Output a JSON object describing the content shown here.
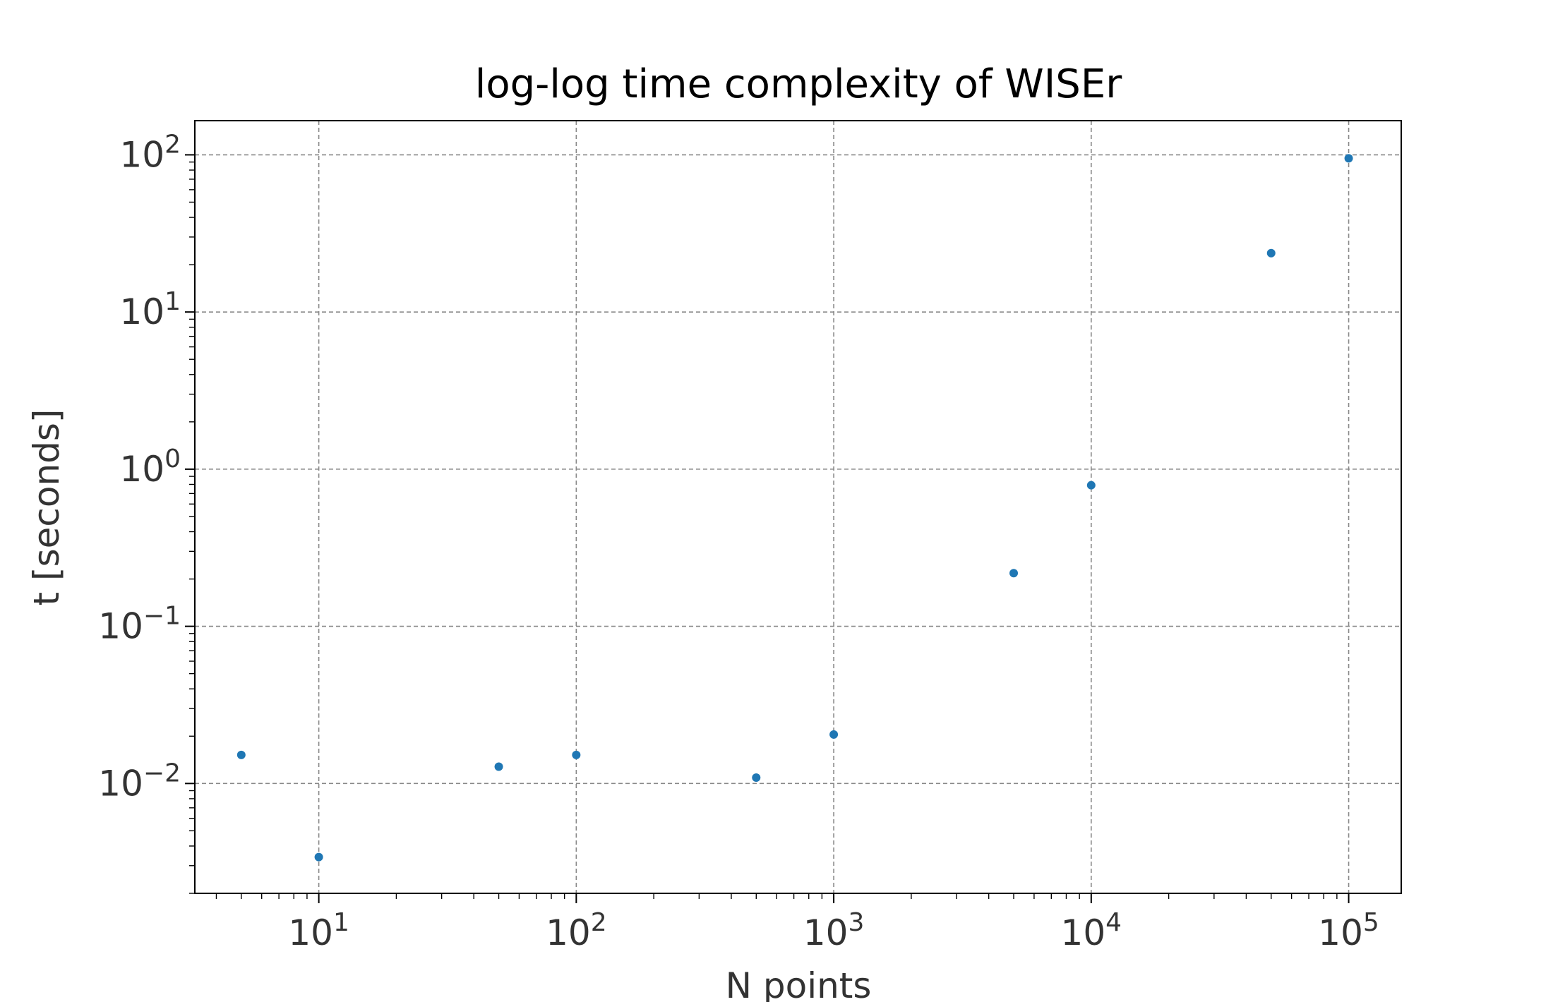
{
  "chart_data": {
    "type": "scatter",
    "title": "log-log time complexity of WISEr",
    "xlabel": "N points",
    "ylabel": "t [seconds]",
    "xscale": "log",
    "yscale": "log",
    "xlim": [
      3.3,
      160000
    ],
    "ylim": [
      0.002,
      165
    ],
    "grid": true,
    "x_ticks": [
      {
        "value": 10,
        "base": "10",
        "exp": "1"
      },
      {
        "value": 100,
        "base": "10",
        "exp": "2"
      },
      {
        "value": 1000,
        "base": "10",
        "exp": "3"
      },
      {
        "value": 10000,
        "base": "10",
        "exp": "4"
      },
      {
        "value": 100000,
        "base": "10",
        "exp": "5"
      }
    ],
    "y_ticks": [
      {
        "value": 0.01,
        "base": "10",
        "exp": "−2"
      },
      {
        "value": 0.1,
        "base": "10",
        "exp": "−1"
      },
      {
        "value": 1,
        "base": "10",
        "exp": "0"
      },
      {
        "value": 10,
        "base": "10",
        "exp": "1"
      },
      {
        "value": 100,
        "base": "10",
        "exp": "2"
      }
    ],
    "series": [
      {
        "color": "#1f77b4",
        "points": [
          {
            "x": 5,
            "y": 0.0152
          },
          {
            "x": 10,
            "y": 0.0034
          },
          {
            "x": 50,
            "y": 0.0128
          },
          {
            "x": 100,
            "y": 0.0152
          },
          {
            "x": 500,
            "y": 0.0109
          },
          {
            "x": 1000,
            "y": 0.0205
          },
          {
            "x": 5000,
            "y": 0.218
          },
          {
            "x": 10000,
            "y": 0.79
          },
          {
            "x": 50000,
            "y": 23.7
          },
          {
            "x": 100000,
            "y": 95
          }
        ]
      }
    ]
  }
}
